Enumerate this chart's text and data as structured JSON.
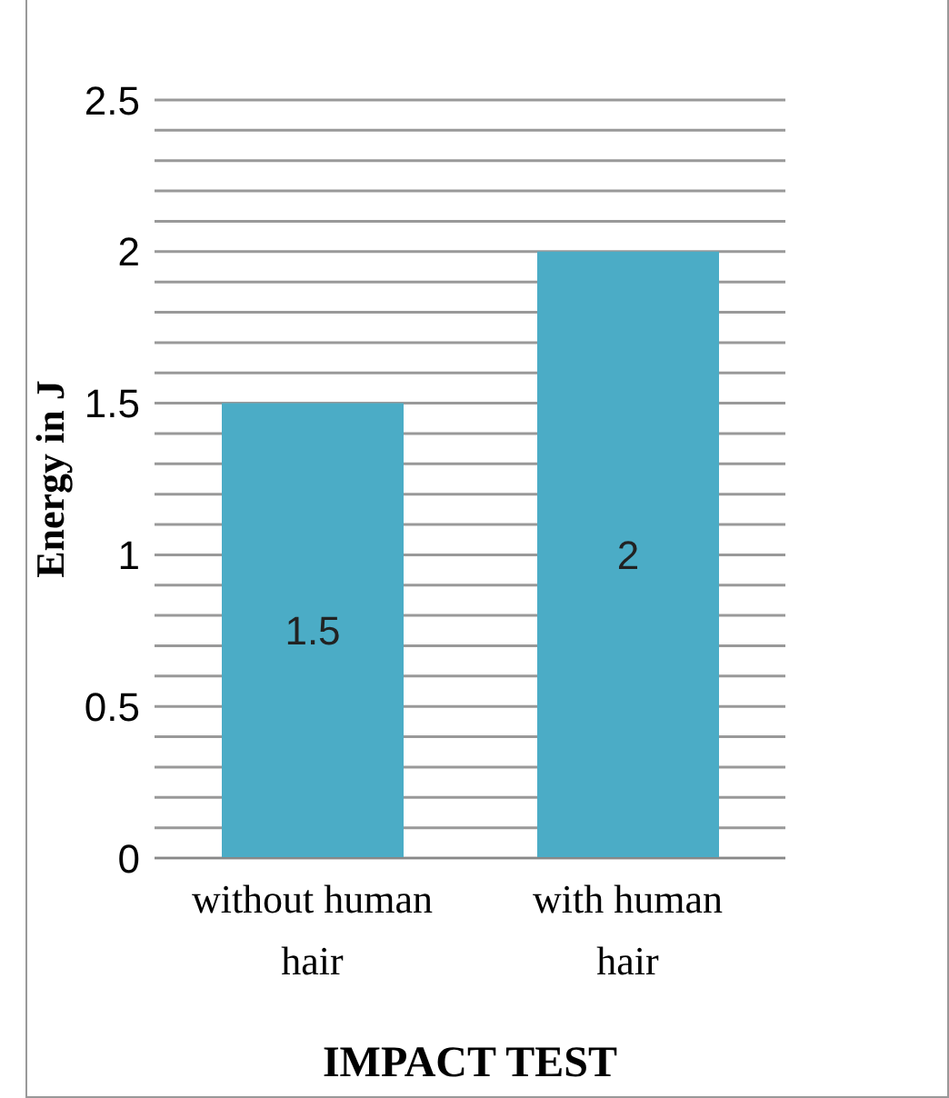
{
  "chart_data": {
    "type": "bar",
    "xlabel": "IMPACT TEST",
    "ylabel": "Energy in J",
    "categories": [
      "without human hair",
      "with human hair"
    ],
    "values": [
      1.5,
      2
    ],
    "color": "#4bacc6",
    "ylim": [
      0,
      2.5
    ],
    "yticks": [
      0,
      {
        "value": 0.1,
        "label": null
      },
      {
        "value": 0.2,
        "label": null
      },
      {
        "value": 0.3,
        "label": null
      },
      {
        "value": 0.4,
        "label": null
      },
      0.5,
      {
        "value": 0.6,
        "label": null
      },
      {
        "value": 0.7,
        "label": null
      },
      {
        "value": 0.8,
        "label": null
      },
      {
        "value": 0.9,
        "label": null
      },
      1,
      {
        "value": 1.1,
        "label": null
      },
      {
        "value": 1.2,
        "label": null
      },
      {
        "value": 1.3,
        "label": null
      },
      {
        "value": 1.4,
        "label": null
      },
      1.5,
      {
        "value": 1.6,
        "label": null
      },
      {
        "value": 1.7,
        "label": null
      },
      {
        "value": 1.8,
        "label": null
      },
      {
        "value": 1.9,
        "label": null
      },
      2,
      {
        "value": 2.1,
        "label": null
      },
      {
        "value": 2.2,
        "label": null
      },
      {
        "value": 2.3,
        "label": null
      },
      {
        "value": 2.4,
        "label": null
      },
      2.5
    ],
    "grid": "y",
    "data_labels": true
  }
}
